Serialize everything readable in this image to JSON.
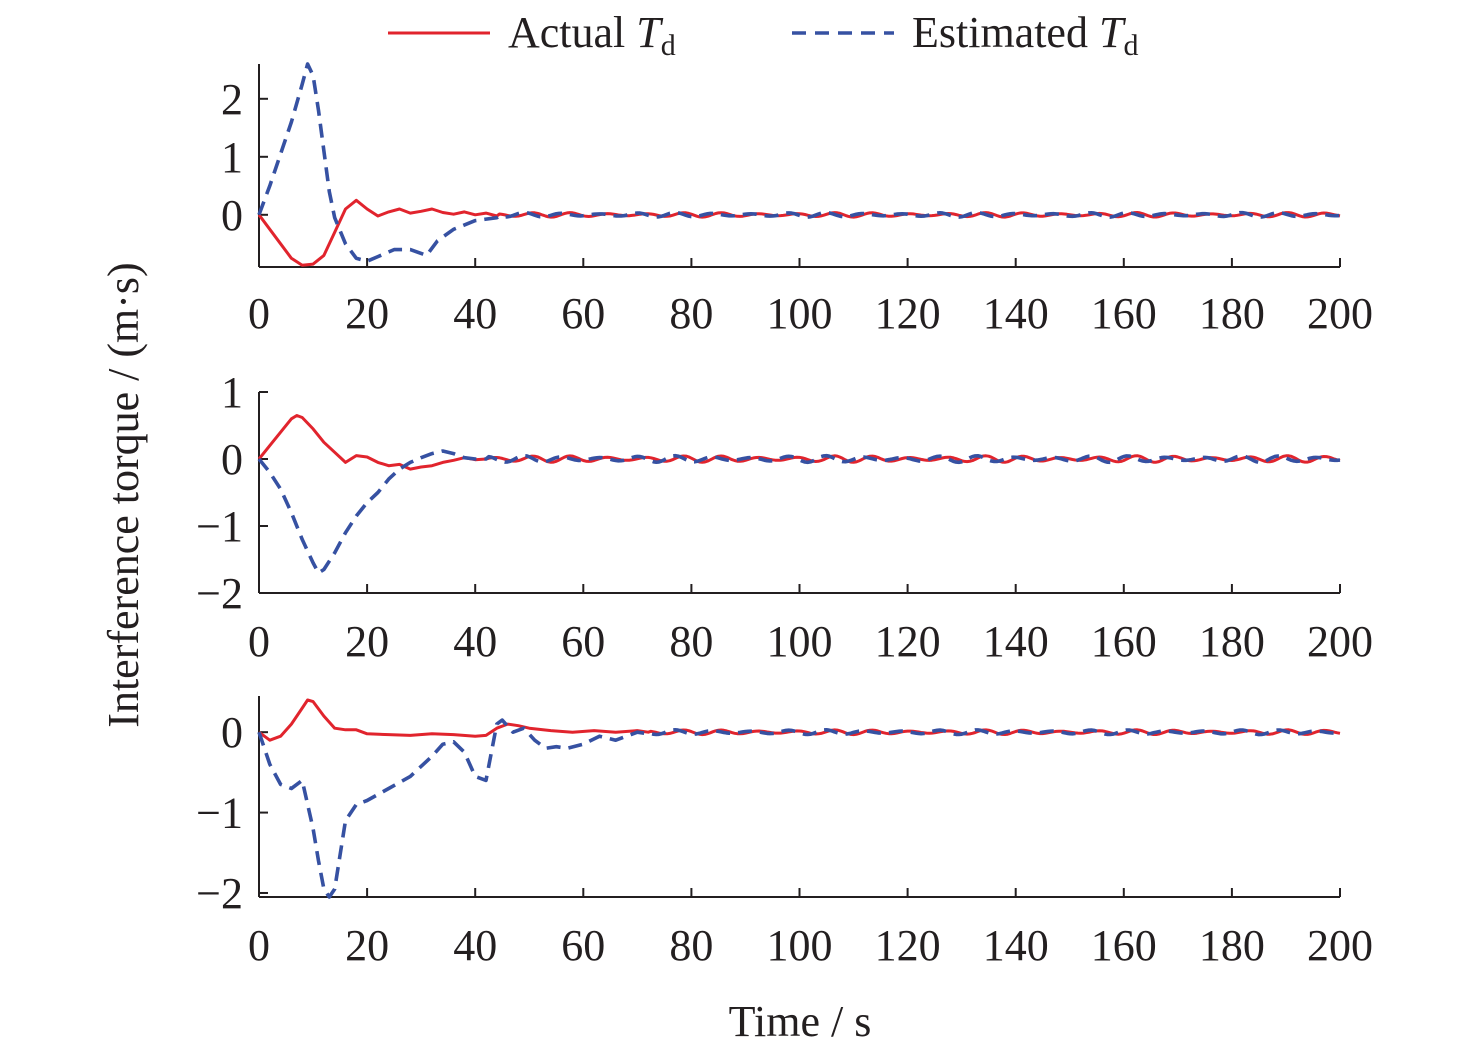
{
  "colors": {
    "actual": "#e1242d",
    "estimated": "#3651a2",
    "axis": "#231f20"
  },
  "legend": [
    {
      "label": "Actual ",
      "symbol": "T",
      "subscript": "d",
      "style": "solid",
      "color": "#e1242d"
    },
    {
      "label": "Estimated ",
      "symbol": "T",
      "subscript": "d",
      "style": "dashed",
      "color": "#3651a2"
    }
  ],
  "chart_data": [
    {
      "type": "line",
      "xlim": [
        0,
        200
      ],
      "ylim": [
        -0.9,
        2.6
      ],
      "x_ticks": [
        "0",
        "20",
        "40",
        "60",
        "80",
        "100",
        "120",
        "140",
        "160",
        "180",
        "200"
      ],
      "y_ticks": [
        {
          "v": 2,
          "label": "2"
        },
        {
          "v": 1,
          "label": "1"
        },
        {
          "v": 0,
          "label": "0"
        }
      ],
      "series": [
        {
          "name": "Actual T_d",
          "color": "#e1242d",
          "dash": "solid",
          "points": [
            [
              0,
              0
            ],
            [
              2,
              -0.25
            ],
            [
              4,
              -0.5
            ],
            [
              6,
              -0.75
            ],
            [
              8,
              -0.87
            ],
            [
              10,
              -0.85
            ],
            [
              12,
              -0.7
            ],
            [
              14,
              -0.3
            ],
            [
              16,
              0.1
            ],
            [
              18,
              0.25
            ],
            [
              20,
              0.1
            ],
            [
              22,
              -0.02
            ],
            [
              24,
              0.05
            ],
            [
              26,
              0.1
            ],
            [
              28,
              0.03
            ],
            [
              30,
              0.06
            ],
            [
              32,
              0.1
            ],
            [
              34,
              0.04
            ],
            [
              36,
              0.01
            ],
            [
              38,
              0.05
            ],
            [
              40,
              0.0
            ],
            [
              42,
              0.03
            ],
            [
              44,
              -0.02
            ]
          ]
        },
        {
          "name": "Estimated T_d",
          "color": "#3651a2",
          "dash": "dashed",
          "points": [
            [
              0,
              0
            ],
            [
              2,
              0.5
            ],
            [
              4,
              1.05
            ],
            [
              6,
              1.6
            ],
            [
              8,
              2.25
            ],
            [
              9,
              2.6
            ],
            [
              10,
              2.4
            ],
            [
              11,
              1.8
            ],
            [
              12,
              1.1
            ],
            [
              13,
              0.4
            ],
            [
              14,
              -0.05
            ],
            [
              16,
              -0.5
            ],
            [
              18,
              -0.75
            ],
            [
              20,
              -0.8
            ],
            [
              22,
              -0.72
            ],
            [
              25,
              -0.6
            ],
            [
              28,
              -0.6
            ],
            [
              31,
              -0.7
            ],
            [
              33,
              -0.45
            ],
            [
              36,
              -0.25
            ],
            [
              40,
              -0.1
            ],
            [
              44,
              -0.05
            ]
          ]
        }
      ],
      "shared_tail": {
        "from": 44,
        "to": 200,
        "amplitude": 0.04
      }
    },
    {
      "type": "line",
      "xlim": [
        0,
        200
      ],
      "ylim": [
        -2,
        1
      ],
      "x_ticks": [
        "0",
        "20",
        "40",
        "60",
        "80",
        "100",
        "120",
        "140",
        "160",
        "180",
        "200"
      ],
      "y_ticks": [
        {
          "v": 1,
          "label": "1"
        },
        {
          "v": 0,
          "label": "0"
        },
        {
          "v": -1,
          "label": "−1"
        },
        {
          "v": -2,
          "label": "−2"
        }
      ],
      "series": [
        {
          "name": "Actual T_d",
          "color": "#e1242d",
          "dash": "solid",
          "points": [
            [
              0,
              0
            ],
            [
              2,
              0.2
            ],
            [
              4,
              0.4
            ],
            [
              6,
              0.6
            ],
            [
              7,
              0.65
            ],
            [
              8,
              0.62
            ],
            [
              10,
              0.45
            ],
            [
              12,
              0.25
            ],
            [
              14,
              0.1
            ],
            [
              16,
              -0.05
            ],
            [
              18,
              0.05
            ],
            [
              20,
              0.03
            ],
            [
              22,
              -0.05
            ],
            [
              24,
              -0.1
            ],
            [
              26,
              -0.08
            ],
            [
              28,
              -0.15
            ],
            [
              30,
              -0.12
            ],
            [
              32,
              -0.1
            ],
            [
              34,
              -0.05
            ],
            [
              36,
              -0.02
            ],
            [
              38,
              0.02
            ],
            [
              40,
              -0.01
            ],
            [
              42,
              0.0
            ]
          ]
        },
        {
          "name": "Estimated T_d",
          "color": "#3651a2",
          "dash": "dashed",
          "points": [
            [
              0,
              0
            ],
            [
              2,
              -0.2
            ],
            [
              4,
              -0.45
            ],
            [
              6,
              -0.8
            ],
            [
              8,
              -1.2
            ],
            [
              10,
              -1.55
            ],
            [
              11,
              -1.7
            ],
            [
              12,
              -1.65
            ],
            [
              14,
              -1.4
            ],
            [
              16,
              -1.1
            ],
            [
              18,
              -0.85
            ],
            [
              20,
              -0.65
            ],
            [
              22,
              -0.5
            ],
            [
              24,
              -0.3
            ],
            [
              26,
              -0.15
            ],
            [
              28,
              -0.05
            ],
            [
              30,
              0.02
            ],
            [
              32,
              0.08
            ],
            [
              34,
              0.12
            ],
            [
              36,
              0.08
            ],
            [
              38,
              0.02
            ],
            [
              40,
              0.0
            ],
            [
              42,
              0.0
            ]
          ]
        }
      ],
      "shared_tail": {
        "from": 42,
        "to": 200,
        "amplitude": 0.05
      }
    },
    {
      "type": "line",
      "xlim": [
        0,
        200
      ],
      "ylim": [
        -2.05,
        0.45
      ],
      "x_ticks": [
        "0",
        "20",
        "40",
        "60",
        "80",
        "100",
        "120",
        "140",
        "160",
        "180",
        "200"
      ],
      "y_ticks": [
        {
          "v": 0,
          "label": "0"
        },
        {
          "v": -1,
          "label": "−1"
        },
        {
          "v": -2,
          "label": "−2"
        }
      ],
      "series": [
        {
          "name": "Actual T_d",
          "color": "#e1242d",
          "dash": "solid",
          "points": [
            [
              0,
              0
            ],
            [
              2,
              -0.1
            ],
            [
              4,
              -0.05
            ],
            [
              6,
              0.1
            ],
            [
              8,
              0.3
            ],
            [
              9,
              0.4
            ],
            [
              10,
              0.38
            ],
            [
              12,
              0.2
            ],
            [
              14,
              0.05
            ],
            [
              16,
              0.03
            ],
            [
              18,
              0.03
            ],
            [
              20,
              -0.02
            ],
            [
              24,
              -0.03
            ],
            [
              28,
              -0.04
            ],
            [
              32,
              -0.02
            ],
            [
              36,
              -0.03
            ],
            [
              40,
              -0.05
            ],
            [
              42,
              -0.04
            ],
            [
              44,
              0.05
            ],
            [
              46,
              0.1
            ],
            [
              48,
              0.08
            ],
            [
              50,
              0.05
            ],
            [
              54,
              0.02
            ],
            [
              58,
              0.0
            ],
            [
              62,
              0.02
            ],
            [
              66,
              0.0
            ],
            [
              70,
              0.02
            ],
            [
              72,
              0.0
            ]
          ]
        },
        {
          "name": "Estimated T_d",
          "color": "#3651a2",
          "dash": "dashed",
          "points": [
            [
              0,
              0
            ],
            [
              2,
              -0.4
            ],
            [
              4,
              -0.65
            ],
            [
              6,
              -0.7
            ],
            [
              8,
              -0.6
            ],
            [
              10,
              -1.2
            ],
            [
              11,
              -1.6
            ],
            [
              12,
              -1.95
            ],
            [
              13,
              -2.05
            ],
            [
              14,
              -1.95
            ],
            [
              16,
              -1.1
            ],
            [
              18,
              -0.9
            ],
            [
              20,
              -0.85
            ],
            [
              24,
              -0.7
            ],
            [
              28,
              -0.55
            ],
            [
              32,
              -0.3
            ],
            [
              34,
              -0.15
            ],
            [
              36,
              -0.12
            ],
            [
              38,
              -0.25
            ],
            [
              40,
              -0.55
            ],
            [
              42,
              -0.6
            ],
            [
              44,
              0.1
            ],
            [
              45,
              0.15
            ],
            [
              47,
              0.0
            ],
            [
              49,
              0.05
            ],
            [
              51,
              -0.1
            ],
            [
              53,
              -0.2
            ],
            [
              55,
              -0.18
            ],
            [
              57,
              -0.2
            ],
            [
              60,
              -0.15
            ],
            [
              63,
              -0.05
            ],
            [
              66,
              -0.1
            ],
            [
              70,
              0.0
            ],
            [
              72,
              -0.02
            ]
          ]
        }
      ],
      "shared_tail": {
        "from": 72,
        "to": 200,
        "amplitude": 0.03
      }
    }
  ],
  "shared_labels": {
    "ylabel": "Interference torque / (m·s)",
    "xlabel": "Time / s"
  }
}
